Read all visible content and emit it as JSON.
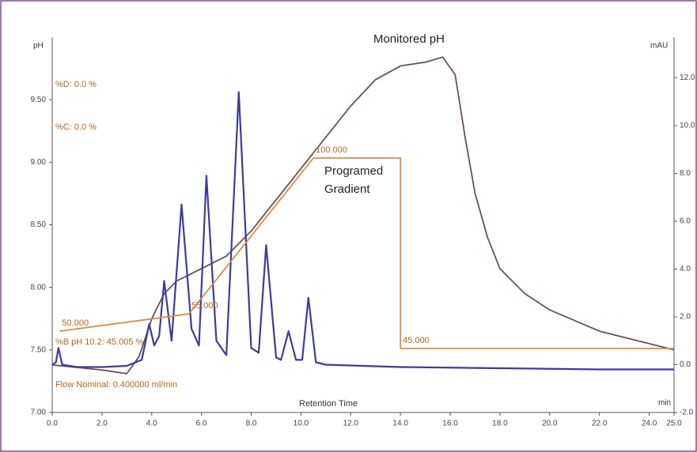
{
  "chart_data": {
    "type": "line",
    "title": "Monitored pH",
    "y_label": "pH",
    "y2_label": "mAU",
    "x_label": "Retention Time",
    "x_unit": "min",
    "gradient_note": [
      "Programed",
      "Gradient"
    ],
    "annotations": [
      "%D: 0.0 %",
      "%C: 0.0 %",
      "%B pH 10.2: 45.005 %",
      "Flow Nominal: 0.400000 ml/min"
    ],
    "xlim": [
      0,
      25
    ],
    "xticks": [
      {
        "value": 0,
        "label": "0.0"
      },
      {
        "value": 2,
        "label": "2.0"
      },
      {
        "value": 4,
        "label": "4.0"
      },
      {
        "value": 6,
        "label": "6.0"
      },
      {
        "value": 8,
        "label": "8.0"
      },
      {
        "value": 10,
        "label": "10.0"
      },
      {
        "value": 12,
        "label": "12.0"
      },
      {
        "value": 14,
        "label": "14.0"
      },
      {
        "value": 16,
        "label": "16.0"
      },
      {
        "value": 18,
        "label": "18.0"
      },
      {
        "value": 20,
        "label": "20.0"
      },
      {
        "value": 22,
        "label": "22.0"
      },
      {
        "value": 24,
        "label": "24.0"
      },
      {
        "value": 25,
        "label": "25.0"
      }
    ],
    "ylim": [
      7.0,
      10.0
    ],
    "yticks": [
      {
        "value": 7,
        "label": "7.00"
      },
      {
        "value": 7.5,
        "label": "7.50"
      },
      {
        "value": 8,
        "label": "8.00"
      },
      {
        "value": 8.5,
        "label": "8.50"
      },
      {
        "value": 9,
        "label": "9.00"
      },
      {
        "value": 9.5,
        "label": "9.50"
      }
    ],
    "y2lim": [
      -2.0,
      13.7
    ],
    "y2ticks": [
      {
        "value": -2,
        "label": "-2.0"
      },
      {
        "value": 0,
        "label": "0.0"
      },
      {
        "value": 2,
        "label": "2.0"
      },
      {
        "value": 4,
        "label": "4.0"
      },
      {
        "value": 6,
        "label": "6.0"
      },
      {
        "value": 8,
        "label": "8.0"
      },
      {
        "value": 10,
        "label": "10.0"
      },
      {
        "value": 12,
        "label": "12.0"
      }
    ],
    "series": [
      {
        "name": "pH",
        "color": "#6b5252",
        "axis": "y",
        "x": [
          0,
          1,
          2,
          3,
          3.5,
          4,
          4.5,
          5,
          6,
          7,
          8,
          9,
          10,
          11,
          12,
          13,
          14,
          15,
          15.7,
          16.2,
          16.6,
          17,
          17.5,
          18,
          19,
          20,
          22,
          24,
          25
        ],
        "values": [
          7.38,
          7.36,
          7.34,
          7.31,
          7.45,
          7.75,
          7.95,
          8.05,
          8.15,
          8.25,
          8.45,
          8.7,
          8.95,
          9.2,
          9.45,
          9.66,
          9.77,
          9.8,
          9.84,
          9.7,
          9.2,
          8.75,
          8.4,
          8.15,
          7.95,
          7.82,
          7.65,
          7.55,
          7.5
        ]
      },
      {
        "name": "mAU",
        "color": "#3b3ba0",
        "axis": "y2",
        "x": [
          0,
          0.15,
          0.25,
          0.4,
          1,
          2,
          3,
          3.6,
          3.9,
          4.1,
          4.3,
          4.5,
          4.8,
          5.2,
          5.6,
          5.9,
          6.2,
          6.6,
          7.0,
          7.5,
          8.0,
          8.3,
          8.6,
          9.0,
          9.2,
          9.5,
          9.8,
          10.05,
          10.3,
          10.6,
          11,
          14,
          18,
          22,
          25
        ],
        "values": [
          0.0,
          0.1,
          0.7,
          0.0,
          -0.1,
          -0.1,
          -0.05,
          0.2,
          1.7,
          0.8,
          1.2,
          3.5,
          1.0,
          6.7,
          1.5,
          0.8,
          7.9,
          1.0,
          0.4,
          11.4,
          0.7,
          0.5,
          5.0,
          0.3,
          0.2,
          1.4,
          0.2,
          0.2,
          2.8,
          0.1,
          0.0,
          -0.1,
          -0.15,
          -0.2,
          -0.2
        ]
      },
      {
        "name": "Gradient",
        "color": "#d98c4a",
        "axis": "gradient",
        "x": [
          0.3,
          5.5,
          10.5,
          14.0,
          14.0,
          25
        ],
        "values": [
          50,
          55,
          100,
          100,
          45,
          45
        ],
        "value_labels": [
          "50.000",
          "55.000",
          "100.000",
          null,
          "45.000",
          null
        ]
      }
    ]
  }
}
